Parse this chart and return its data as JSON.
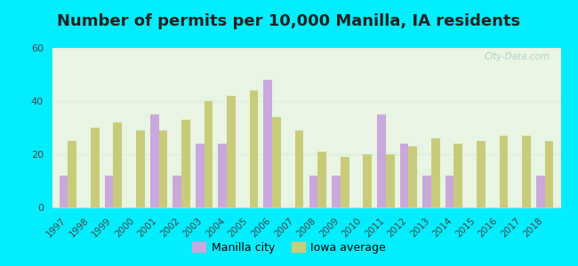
{
  "title": "Number of permits per 10,000 Manilla, IA residents",
  "years": [
    1997,
    1998,
    1999,
    2000,
    2001,
    2002,
    2003,
    2004,
    2005,
    2006,
    2007,
    2008,
    2009,
    2010,
    2011,
    2012,
    2013,
    2014,
    2015,
    2016,
    2017,
    2018
  ],
  "manilla": [
    12,
    0,
    12,
    0,
    35,
    12,
    24,
    24,
    0,
    48,
    0,
    12,
    12,
    0,
    35,
    24,
    12,
    12,
    0,
    0,
    0,
    12
  ],
  "iowa": [
    25,
    30,
    32,
    29,
    29,
    33,
    40,
    42,
    44,
    34,
    29,
    21,
    19,
    20,
    20,
    23,
    26,
    24,
    25,
    27,
    27,
    25
  ],
  "manilla_color": "#c9a8dc",
  "iowa_color": "#c8cc7a",
  "outer_bg": "#00eeff",
  "plot_bg_top": "#e8f5e2",
  "plot_bg_bottom": "#d8f0d8",
  "ylim": [
    0,
    60
  ],
  "yticks": [
    0,
    20,
    40,
    60
  ],
  "bar_width": 0.38,
  "legend_manilla": "Manilla city",
  "legend_iowa": "Iowa average",
  "title_fontsize": 13,
  "watermark_color": "#aac8cc",
  "grid_color": "#e0ece0"
}
